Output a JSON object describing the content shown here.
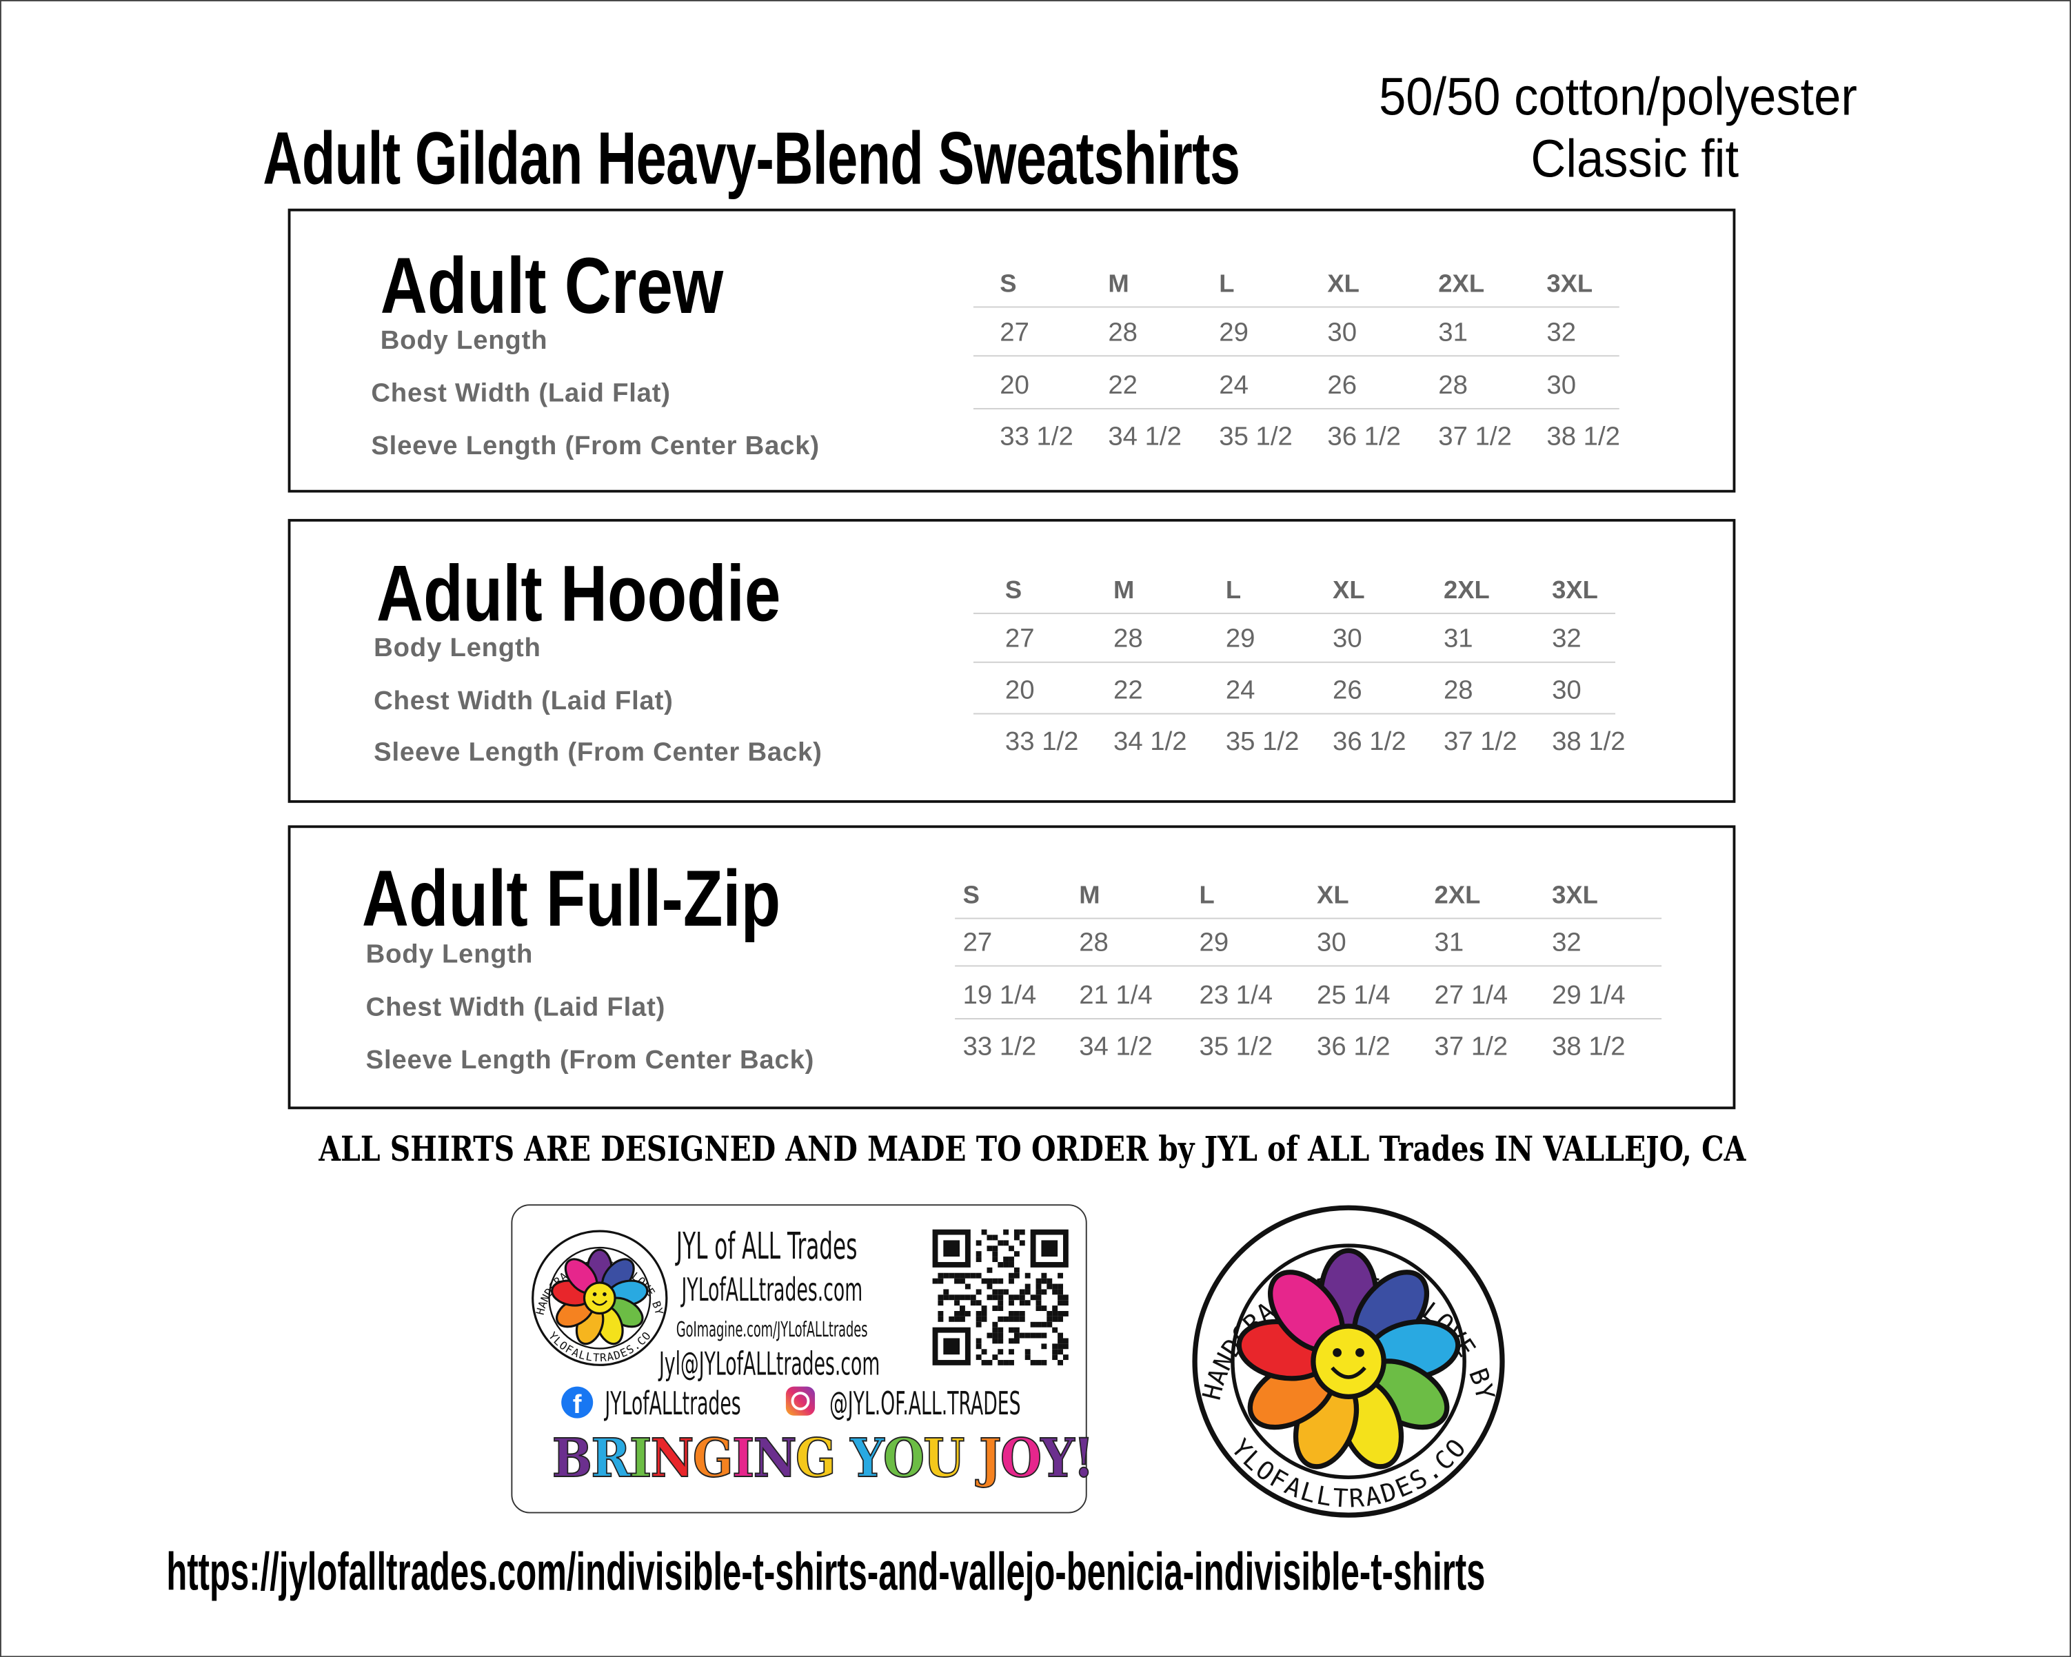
{
  "header": {
    "title": "Adult Gildan Heavy-Blend Sweatshirts",
    "fabric": "50/50 cotton/polyester",
    "fit": "Classic fit"
  },
  "sizes": [
    "S",
    "M",
    "L",
    "XL",
    "2XL",
    "3XL"
  ],
  "products": [
    {
      "name": "Adult Crew",
      "rows": [
        {
          "label": "Body Length",
          "values": [
            "27",
            "28",
            "29",
            "30",
            "31",
            "32"
          ]
        },
        {
          "label": "Chest Width (Laid Flat)",
          "values": [
            "20",
            "22",
            "24",
            "26",
            "28",
            "30"
          ]
        },
        {
          "label": "Sleeve Length (From Center Back)",
          "values": [
            "33 1/2",
            "34 1/2",
            "35 1/2",
            "36 1/2",
            "37 1/2",
            "38 1/2"
          ]
        }
      ]
    },
    {
      "name": "Adult Hoodie",
      "rows": [
        {
          "label": "Body Length",
          "values": [
            "27",
            "28",
            "29",
            "30",
            "31",
            "32"
          ]
        },
        {
          "label": "Chest Width (Laid Flat)",
          "values": [
            "20",
            "22",
            "24",
            "26",
            "28",
            "30"
          ]
        },
        {
          "label": "Sleeve Length (From Center Back)",
          "values": [
            "33 1/2",
            "34 1/2",
            "35 1/2",
            "36 1/2",
            "37 1/2",
            "38 1/2"
          ]
        }
      ]
    },
    {
      "name": "Adult Full-Zip",
      "rows": [
        {
          "label": "Body Length",
          "values": [
            "27",
            "28",
            "29",
            "30",
            "31",
            "32"
          ]
        },
        {
          "label": "Chest Width (Laid Flat)",
          "values": [
            "19 1/4",
            "21 1/4",
            "23 1/4",
            "25 1/4",
            "27 1/4",
            "29 1/4"
          ]
        },
        {
          "label": "Sleeve Length (From Center Back)",
          "values": [
            "33 1/2",
            "34 1/2",
            "35 1/2",
            "36 1/2",
            "37 1/2",
            "38 1/2"
          ]
        }
      ]
    }
  ],
  "made_to_order": "ALL SHIRTS ARE DESIGNED AND MADE TO ORDER by JYL of ALL Trades IN VALLEJO, CA",
  "card": {
    "brand": "JYL of ALL Trades",
    "website": "JYLofALLtrades.com",
    "goimagine": "GoImagine.com/JYLofALLtrades",
    "email": "Jyl@JYLofALLtrades.com",
    "facebook": "JYLofALLtrades",
    "instagram": "@JYL.OF.ALL.TRADES",
    "slogan": "BRINGING YOU JOY!",
    "facebook_icon": "facebook-icon",
    "instagram_icon": "instagram-icon"
  },
  "logo": {
    "top_text": "HANDCRAFTED WITH LOVE BY",
    "bottom_text": "JYLOFALLTRADES.COM",
    "petal_colors": [
      "#6b2f8e",
      "#3b4fa3",
      "#29a9e1",
      "#6cbd45",
      "#f4e11b",
      "#f6b51e",
      "#f58220",
      "#e8262b",
      "#e6268c"
    ]
  },
  "slogan_colors": [
    "#6b2f8e",
    "#29a9e1",
    "#6cbd45",
    "#e8262b",
    "#f58220",
    "#e6268c",
    "#6b2f8e",
    "#f4c81b",
    "#29a9e1",
    "#6cbd45",
    "#f4c81b",
    "#f58220",
    "#e6268c",
    "#6b2f8e"
  ],
  "url": "https://jylofalltrades.com/indivisible-t-shirts-and-vallejo-benicia-indivisible-t-shirts"
}
